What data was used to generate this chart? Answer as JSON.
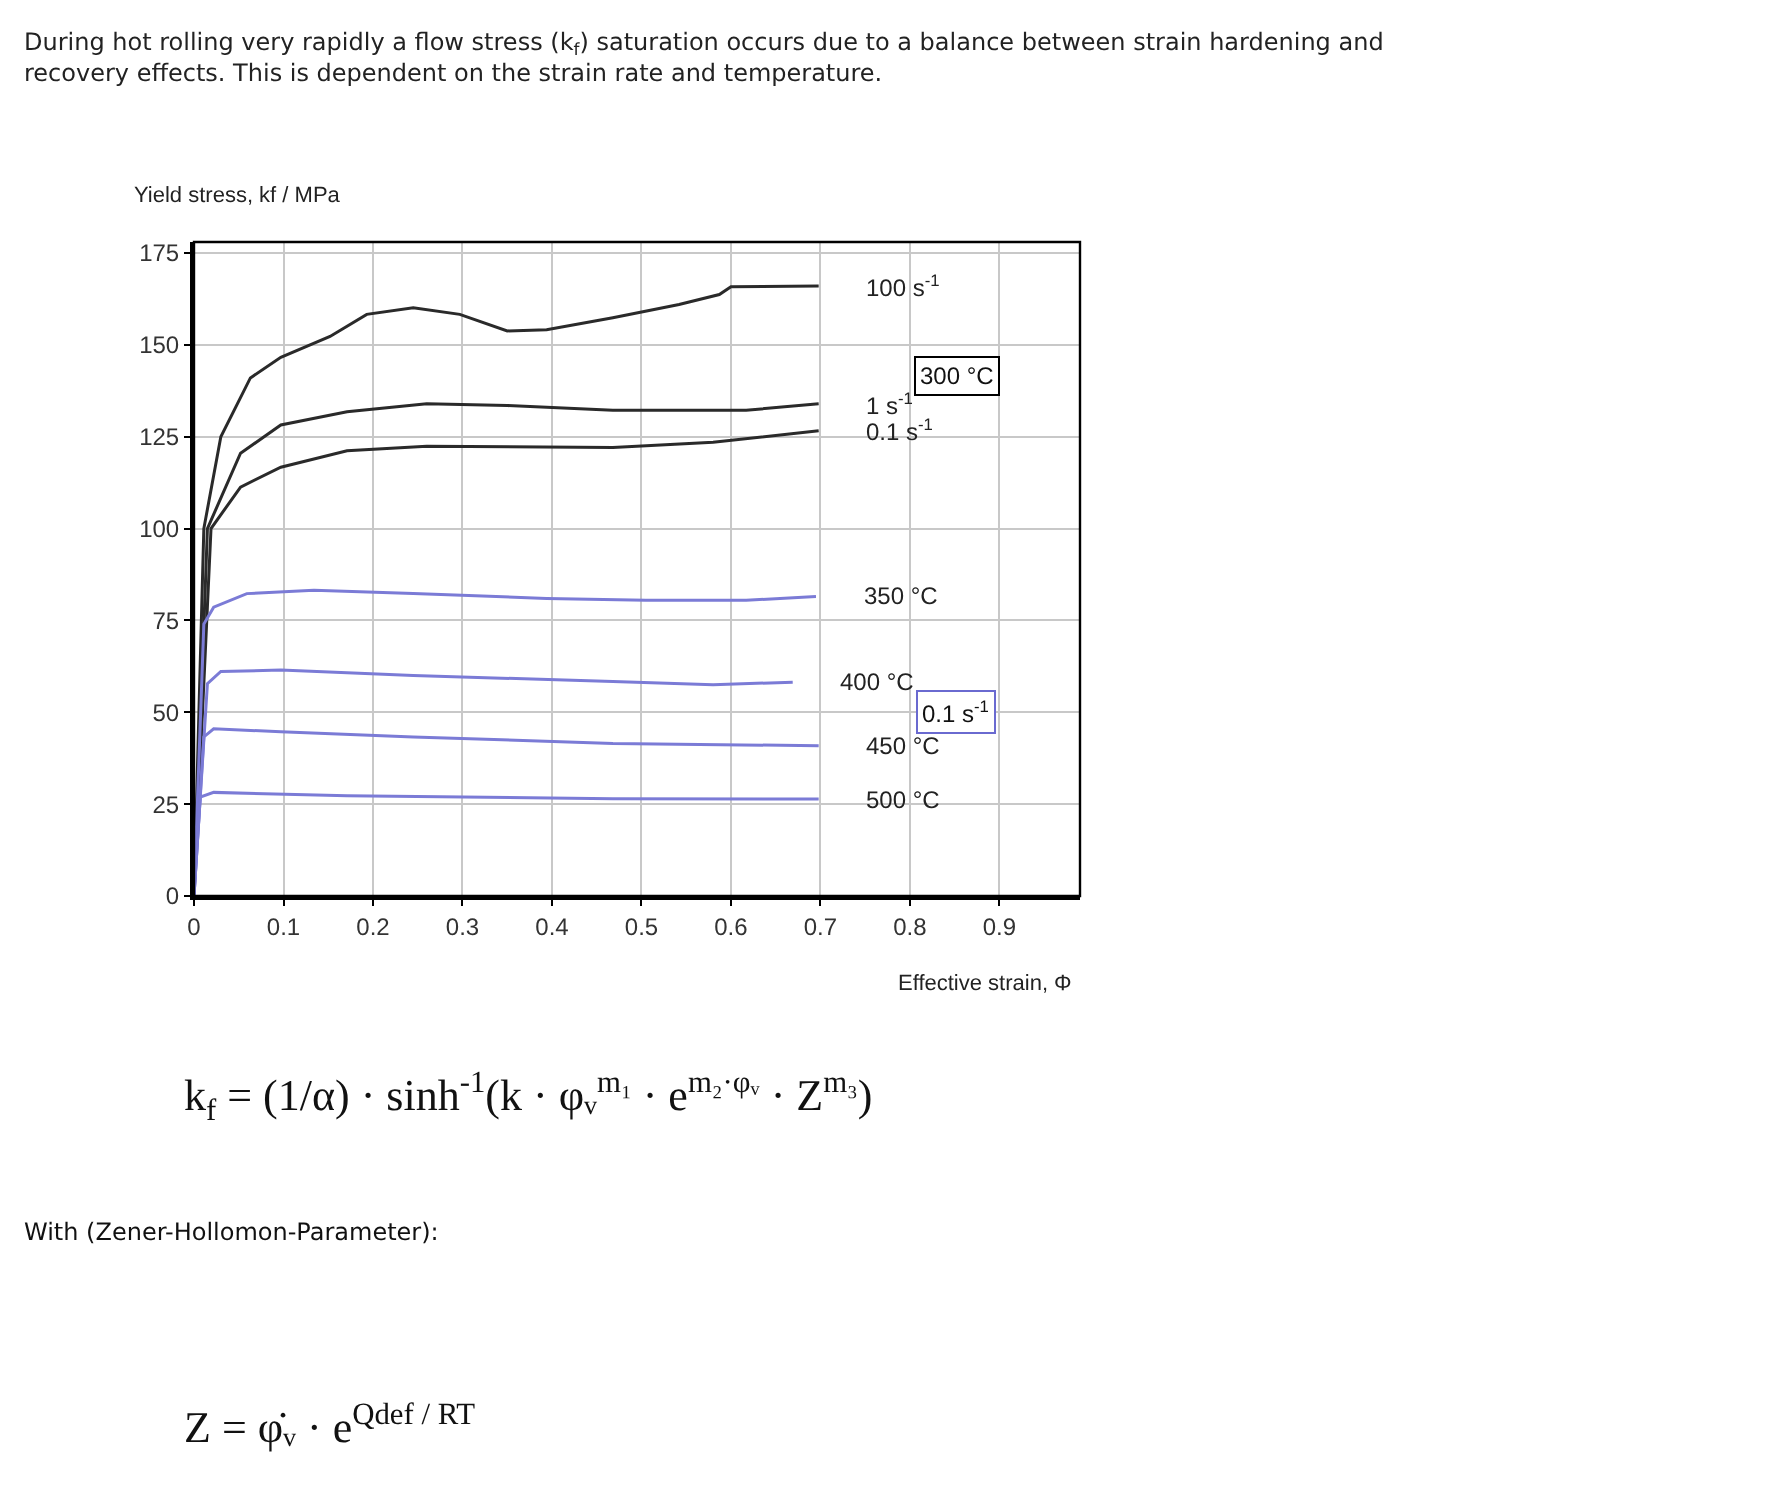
{
  "chart_data": {
    "type": "line",
    "title": "During hot rolling very rapidly a flow stress (k$_{f}$) saturation occurs due to a balance between strain hardening and recovery effects. This is dependent on the strain rate and temperature.",
    "xlabel": "Effective strain, Φ",
    "ylabel": "Yield stress, kf / MPa",
    "xlim": [
      0,
      0.99
    ],
    "ylim": [
      0,
      178
    ],
    "xticks": [
      0,
      0.1,
      0.2,
      0.3,
      0.4,
      0.5,
      0.6,
      0.7,
      0.8,
      0.9
    ],
    "yticks": [
      0,
      25,
      50,
      75,
      100,
      125,
      150,
      175
    ],
    "grid": true,
    "legend": false,
    "marker": "none",
    "line_style": "solid",
    "series": [
      {
        "name": "100 s$^{-1}$",
        "color": "#2a2a2a",
        "x": [
          0,
          0.011,
          0.03,
          0.063,
          0.097,
          0.152,
          0.193,
          0.245,
          0.297,
          0.35,
          0.394,
          0.468,
          0.542,
          0.587,
          0.6,
          0.698
        ],
        "values": [
          0,
          100,
          125,
          141,
          146.6,
          152.3,
          158.3,
          160.1,
          158.3,
          153.8,
          154.1,
          157.4,
          161,
          163.7,
          165.8,
          166
        ]
      },
      {
        "name": "1 s$^{-1}$",
        "color": "#2a2a2a",
        "x": [
          0,
          0.015,
          0.052,
          0.097,
          0.171,
          0.26,
          0.35,
          0.468,
          0.617,
          0.698
        ],
        "values": [
          0,
          100,
          120.5,
          128.2,
          131.8,
          134,
          133.5,
          132.2,
          132.2,
          134
        ]
      },
      {
        "name": "0.1 s$^{-1}$",
        "color": "#2a2a2a",
        "x": [
          0,
          0.019,
          0.052,
          0.097,
          0.171,
          0.26,
          0.468,
          0.58,
          0.698
        ],
        "values": [
          0,
          100,
          111.3,
          116.7,
          121.2,
          122.4,
          122.1,
          123.5,
          126.6
        ]
      },
      {
        "name": "350 °C",
        "color": "#7b7bd6",
        "x": [
          0,
          0.011,
          0.022,
          0.059,
          0.134,
          0.245,
          0.394,
          0.505,
          0.617,
          0.695
        ],
        "values": [
          0,
          74,
          78.6,
          82.3,
          83.2,
          82.3,
          81,
          80.5,
          80.5,
          81.5
        ]
      },
      {
        "name": "400 °C",
        "color": "#7b7bd6",
        "x": [
          0,
          0.015,
          0.03,
          0.097,
          0.245,
          0.468,
          0.58,
          0.669
        ],
        "values": [
          0,
          57.8,
          61.1,
          61.5,
          60,
          58.4,
          57.5,
          58.2
        ]
      },
      {
        "name": "450 °C",
        "color": "#7b7bd6",
        "x": [
          0,
          0.011,
          0.022,
          0.097,
          0.245,
          0.468,
          0.698
        ],
        "values": [
          0,
          43.3,
          45.5,
          44.7,
          43.3,
          41.5,
          40.9
        ]
      },
      {
        "name": "500 °C",
        "color": "#7b7bd6",
        "x": [
          0,
          0.007,
          0.022,
          0.171,
          0.468,
          0.698
        ],
        "values": [
          0,
          26.9,
          28.2,
          27.3,
          26.5,
          26.4
        ]
      }
    ],
    "annotations": [
      "300 °C",
      "0.1 s$^{-1}$",
      "With (Zener-Hollomon-Parameter):",
      "k$_{f}$ = (1/α) · sinh$^{-1}$(k · φᵥ$^{m₁}$ · e$^{m₂·φᵥ}$ · Z$^{m₃}$)",
      "Z = φ̇ᵥ · e$^{Qdef / RT}$"
    ]
  }
}
